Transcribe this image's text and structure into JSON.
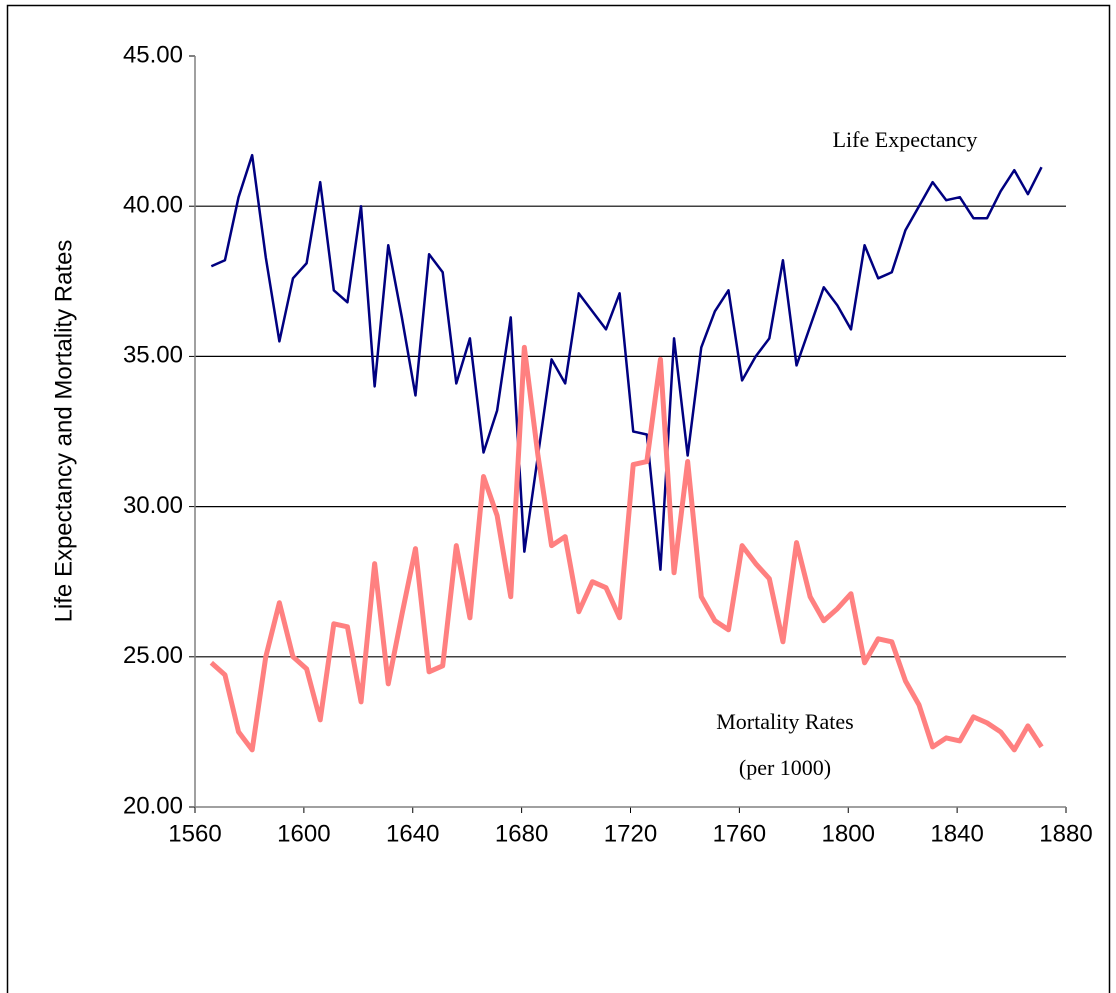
{
  "chart_data": {
    "type": "line",
    "y_label": "Life Expectancy and Mortality Rates",
    "x": [
      1566,
      1571,
      1576,
      1581,
      1586,
      1591,
      1596,
      1601,
      1606,
      1611,
      1616,
      1621,
      1626,
      1631,
      1636,
      1641,
      1646,
      1651,
      1656,
      1661,
      1666,
      1671,
      1676,
      1681,
      1686,
      1691,
      1696,
      1701,
      1706,
      1711,
      1716,
      1721,
      1726,
      1731,
      1736,
      1741,
      1746,
      1751,
      1756,
      1761,
      1766,
      1771,
      1776,
      1781,
      1786,
      1791,
      1796,
      1801,
      1806,
      1811,
      1816,
      1821,
      1826,
      1831,
      1836,
      1841,
      1846,
      1851,
      1856,
      1861,
      1866,
      1871
    ],
    "series": [
      {
        "name": "Life Expectancy",
        "color": "#000080",
        "values": [
          38.0,
          38.2,
          40.3,
          41.7,
          38.3,
          35.5,
          37.6,
          38.1,
          40.8,
          37.2,
          36.8,
          40.0,
          34.0,
          38.7,
          36.3,
          33.7,
          38.4,
          37.8,
          34.1,
          35.6,
          31.8,
          33.2,
          36.3,
          28.5,
          31.7,
          34.9,
          34.1,
          37.1,
          36.5,
          35.9,
          37.1,
          32.5,
          32.4,
          27.9,
          35.6,
          31.7,
          35.3,
          36.5,
          37.2,
          34.2,
          35.0,
          35.6,
          38.2,
          34.7,
          36.0,
          37.3,
          36.7,
          35.9,
          38.7,
          37.6,
          37.8,
          39.2,
          40.0,
          40.8,
          40.2,
          40.3,
          39.6,
          39.6,
          40.5,
          41.2,
          40.4,
          41.3
        ]
      },
      {
        "name": "Mortality Rates",
        "unit": "(per 1000)",
        "color": "#ff8080",
        "values": [
          24.8,
          24.4,
          22.5,
          21.9,
          25.0,
          26.8,
          25.0,
          24.6,
          22.9,
          26.1,
          26.0,
          23.5,
          28.1,
          24.1,
          26.4,
          28.6,
          24.5,
          24.7,
          28.7,
          26.3,
          31.0,
          29.7,
          27.0,
          35.3,
          31.7,
          28.7,
          29.0,
          26.5,
          27.5,
          27.3,
          26.3,
          31.4,
          31.5,
          34.9,
          27.8,
          31.5,
          27.0,
          26.2,
          25.9,
          28.7,
          28.1,
          27.6,
          25.5,
          28.8,
          27.0,
          26.2,
          26.6,
          27.1,
          24.8,
          25.6,
          25.5,
          24.2,
          23.4,
          22.0,
          22.3,
          22.2,
          23.0,
          22.8,
          22.5,
          21.9,
          22.7,
          22.0
        ]
      }
    ],
    "xlim": [
      1560,
      1880
    ],
    "xticks": [
      1560,
      1600,
      1640,
      1680,
      1720,
      1760,
      1800,
      1840,
      1880
    ],
    "ylim": [
      20,
      45
    ],
    "yticks": [
      {
        "value": 20,
        "label": "20.00"
      },
      {
        "value": 25,
        "label": "25.00"
      },
      {
        "value": 30,
        "label": "30.00"
      },
      {
        "value": 35,
        "label": "35.00"
      },
      {
        "value": 40,
        "label": "40.00"
      },
      {
        "value": 45,
        "label": "45.00"
      }
    ],
    "grid": true
  }
}
